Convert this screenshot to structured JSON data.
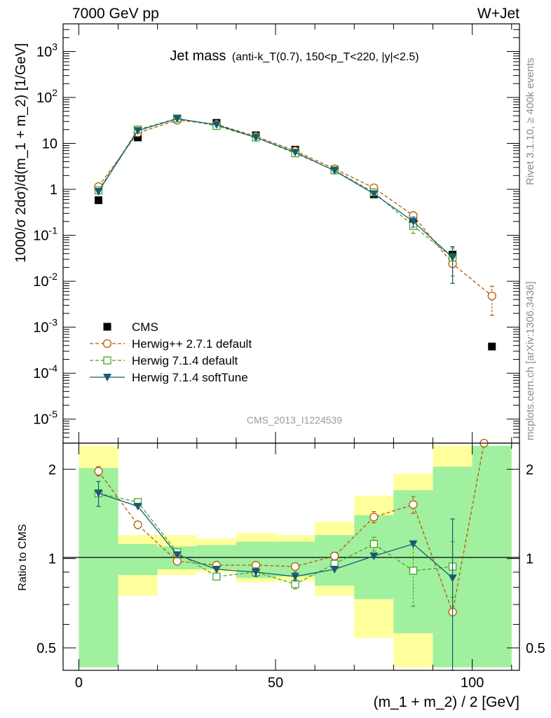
{
  "header": {
    "left": "7000 GeV pp",
    "right": "W+Jet"
  },
  "side_labels": {
    "rivet": "Rivet 3.1.10, ≥ 400k events",
    "mcplots": "mcplots.cern.ch [arXiv:1306.3436]"
  },
  "watermark": "CMS_2013_I1224539",
  "chart_data": [
    {
      "type": "scatter",
      "panel": "main",
      "title_main": "Jet mass",
      "title_sub": "(anti-k_T(0.7), 150<p_T<220, |y|<2.5)",
      "ylabel": "1000/σ 2dσ)/d(m_1 + m_2) [1/GeV]",
      "yscale": "log",
      "ylim": [
        3e-06,
        4000
      ],
      "xlim": [
        -4,
        112
      ],
      "ytick_labels": [
        "10^3",
        "10^2",
        "10",
        "1",
        "10^-1",
        "10^-2",
        "10^-3",
        "10^-4",
        "10^-5"
      ],
      "legend_position": "lower-left",
      "series": [
        {
          "name": "CMS",
          "style": "data",
          "color": "#000000",
          "x": [
            5,
            15,
            25,
            35,
            45,
            55,
            65,
            75,
            85,
            95,
            105
          ],
          "y": [
            0.58,
            13.5,
            34,
            28,
            15,
            7.3,
            2.7,
            0.78,
            0.18,
            0.038,
            0.00038
          ]
        },
        {
          "name": "Herwig++ 2.7.1 default",
          "style": "circle-dash",
          "color": "#b35c00",
          "x": [
            5,
            15,
            25,
            35,
            45,
            55,
            65,
            75,
            85,
            95,
            105
          ],
          "y": [
            1.15,
            17,
            32,
            26,
            14.2,
            6.9,
            2.8,
            1.08,
            0.27,
            0.024,
            0.0048
          ],
          "yerr": [
            0,
            0,
            0,
            0,
            0,
            0,
            0,
            0,
            0,
            0.015,
            0.003
          ]
        },
        {
          "name": "Herwig 7.1.4 default",
          "style": "square-dash",
          "color": "#4aa51f",
          "x": [
            5,
            15,
            25,
            35,
            45,
            55,
            65,
            75,
            85,
            95
          ],
          "y": [
            0.95,
            20,
            35,
            24,
            13.5,
            6.1,
            2.6,
            0.86,
            0.16,
            0.033
          ],
          "yerr": [
            0,
            0,
            0,
            0,
            0,
            0,
            0,
            0,
            0.05,
            0.02
          ]
        },
        {
          "name": "Herwig 7.1.4 softTune",
          "style": "triangle-solid",
          "color": "#1a5a73",
          "x": [
            5,
            15,
            25,
            35,
            45,
            55,
            65,
            75,
            85,
            95
          ],
          "y": [
            0.9,
            19,
            34.5,
            25.5,
            13.4,
            6.4,
            2.55,
            0.8,
            0.2,
            0.033
          ],
          "yerr": [
            0,
            0,
            0,
            0,
            0,
            0,
            0,
            0,
            0.05,
            0.024
          ]
        }
      ]
    },
    {
      "type": "line",
      "panel": "ratio",
      "ylabel": "Ratio to CMS",
      "xlabel": "(m_1 + m_2) / 2 [GeV]",
      "yscale": "log",
      "ylim": [
        0.42,
        2.45
      ],
      "xlim": [
        -4,
        112
      ],
      "yticks": [
        0.5,
        1,
        2
      ],
      "ytick_labels": [
        "0.5",
        "1",
        "2"
      ],
      "xticks": [
        0,
        50,
        100
      ],
      "xtick_labels": [
        "0",
        "50",
        "100"
      ],
      "bands": {
        "x_edges": [
          0,
          10,
          20,
          30,
          40,
          50,
          60,
          70,
          80,
          90,
          100,
          110
        ],
        "yellow": [
          [
            0.43,
            2.4
          ],
          [
            0.75,
            1.2
          ],
          [
            0.88,
            1.2
          ],
          [
            0.9,
            1.17
          ],
          [
            0.83,
            1.22
          ],
          [
            0.84,
            1.2
          ],
          [
            0.75,
            1.33
          ],
          [
            0.54,
            1.63
          ],
          [
            0.43,
            1.93
          ],
          [
            0.43,
            2.4
          ],
          [
            0.43,
            2.4
          ]
        ],
        "green": [
          [
            0.43,
            2.02
          ],
          [
            0.88,
            1.12
          ],
          [
            0.92,
            1.1
          ],
          [
            0.92,
            1.11
          ],
          [
            0.86,
            1.14
          ],
          [
            0.87,
            1.14
          ],
          [
            0.81,
            1.2
          ],
          [
            0.73,
            1.4
          ],
          [
            0.56,
            1.7
          ],
          [
            0.43,
            2.04
          ],
          [
            0.43,
            2.4
          ]
        ]
      },
      "series": [
        {
          "name": "Herwig++ 2.7.1 default",
          "style": "circle-dash",
          "color": "#b35c00",
          "x": [
            5,
            15,
            25,
            35,
            45,
            55,
            65,
            75,
            85,
            95,
            103
          ],
          "y": [
            1.97,
            1.3,
            0.98,
            0.95,
            0.95,
            0.94,
            1.02,
            1.38,
            1.52,
            0.66,
            2.45
          ],
          "yerr": [
            0.07,
            0,
            0,
            0,
            0,
            0,
            0.03,
            0.06,
            0.1,
            0,
            0
          ]
        },
        {
          "name": "Herwig 7.1.4 default",
          "style": "square-dash",
          "color": "#4aa51f",
          "x": [
            5,
            15,
            25,
            35,
            45,
            55,
            65,
            75,
            85,
            95
          ],
          "y": [
            1.66,
            1.55,
            1.05,
            0.87,
            0.9,
            0.82,
            0.96,
            1.12,
            0.91,
            0.94
          ],
          "yerr": [
            0,
            0,
            0,
            0.02,
            0.02,
            0.03,
            0,
            0.06,
            0.22,
            0.2
          ]
        },
        {
          "name": "Herwig 7.1.4 softTune",
          "style": "triangle-solid",
          "color": "#1a5a73",
          "x": [
            5,
            15,
            25,
            35,
            45,
            55,
            65,
            75,
            85,
            95
          ],
          "y": [
            1.66,
            1.5,
            1.03,
            0.92,
            0.9,
            0.87,
            0.92,
            1.02,
            1.12,
            0.86
          ],
          "yerr": [
            0.16,
            0,
            0,
            0,
            0.03,
            0.03,
            0,
            0,
            0,
            0.5
          ]
        }
      ]
    }
  ]
}
